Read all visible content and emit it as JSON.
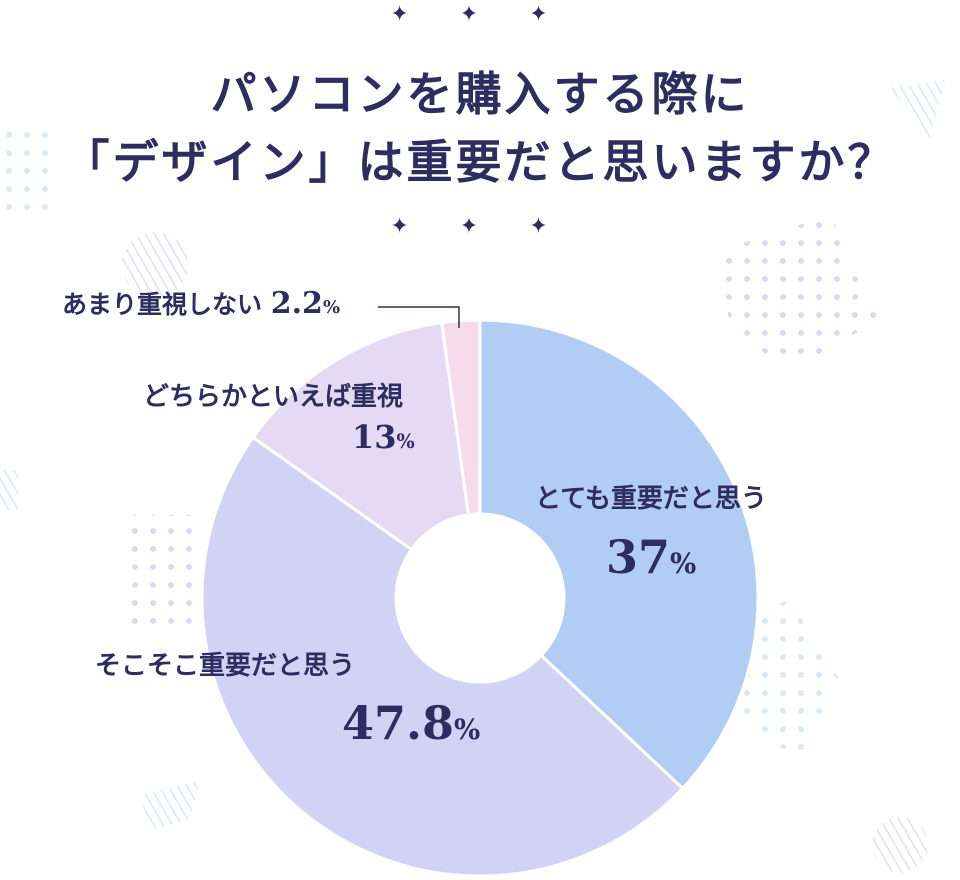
{
  "title_line1": "パソコンを購入する際に",
  "title_line2": "「デザイン」は重要だと思いますか？",
  "star_ornament": "✦ ✦ ✦",
  "colors": {
    "text": "#2e2d5f",
    "very_important": "#b1cdf3",
    "somewhat_important": "#d2d2f5",
    "rather_important": "#e5daf3",
    "not_important": "#f6dbea"
  },
  "chart_data": {
    "type": "pie",
    "donut": true,
    "categories": [
      "とても重要だと思う",
      "そこそこ重要だと思う",
      "どちらかといえば重視",
      "あまり重視しない"
    ],
    "values": [
      37,
      47.8,
      13,
      2.2
    ],
    "value_labels": [
      "37",
      "47.8",
      "13",
      "2.2"
    ],
    "unit": "%",
    "start": "top",
    "direction": "clockwise",
    "legend": "none"
  }
}
